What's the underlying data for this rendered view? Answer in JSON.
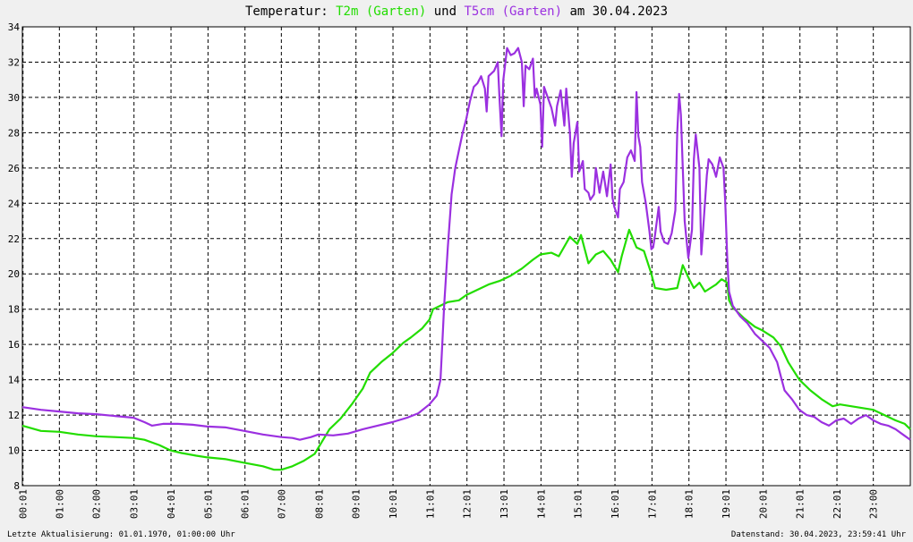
{
  "header": {
    "title_prefix": "Temperatur: ",
    "series1_label": "T2m (Garten)",
    "joiner": " und ",
    "series2_label": "T5cm (Garten)",
    "title_suffix": " am 30.04.2023"
  },
  "footer": {
    "left": "Letzte Aktualisierung: 01.01.1970, 01:00:00 Uhr",
    "right": "Datenstand: 30.04.2023, 23:59:41 Uhr"
  },
  "colors": {
    "t2m": "#22dd00",
    "t5cm": "#9b30e0",
    "background": "#f0f0f0",
    "plot_bg": "#ffffff",
    "grid": "#000000"
  },
  "chart_data": {
    "type": "line",
    "x_unit": "hours",
    "xlim": [
      0,
      24
    ],
    "ylim": [
      8,
      34
    ],
    "grid": true,
    "y_ticks": [
      8,
      10,
      12,
      14,
      16,
      18,
      20,
      22,
      24,
      26,
      28,
      30,
      32,
      34
    ],
    "x_ticks": [
      {
        "x": 0.017,
        "label": "00:01"
      },
      {
        "x": 1,
        "label": "01:00"
      },
      {
        "x": 2,
        "label": "02:00"
      },
      {
        "x": 3.017,
        "label": "03:01"
      },
      {
        "x": 4.017,
        "label": "04:01"
      },
      {
        "x": 5.017,
        "label": "05:01"
      },
      {
        "x": 6.017,
        "label": "06:01"
      },
      {
        "x": 7,
        "label": "07:00"
      },
      {
        "x": 8.017,
        "label": "08:01"
      },
      {
        "x": 9.017,
        "label": "09:01"
      },
      {
        "x": 10.017,
        "label": "10:01"
      },
      {
        "x": 11.017,
        "label": "11:01"
      },
      {
        "x": 12.017,
        "label": "12:01"
      },
      {
        "x": 13.017,
        "label": "13:01"
      },
      {
        "x": 14.017,
        "label": "14:01"
      },
      {
        "x": 15.017,
        "label": "15:01"
      },
      {
        "x": 16.017,
        "label": "16:01"
      },
      {
        "x": 17.017,
        "label": "17:01"
      },
      {
        "x": 18.017,
        "label": "18:01"
      },
      {
        "x": 19.017,
        "label": "19:01"
      },
      {
        "x": 20.017,
        "label": "20:01"
      },
      {
        "x": 21.017,
        "label": "21:01"
      },
      {
        "x": 22.017,
        "label": "22:01"
      },
      {
        "x": 23,
        "label": "23:00"
      }
    ],
    "series": [
      {
        "name": "T2m (Garten)",
        "color": "#22dd00",
        "points": [
          [
            0,
            11.4
          ],
          [
            0.5,
            11.1
          ],
          [
            1,
            11.05
          ],
          [
            1.5,
            10.9
          ],
          [
            2,
            10.8
          ],
          [
            2.5,
            10.75
          ],
          [
            3,
            10.7
          ],
          [
            3.3,
            10.6
          ],
          [
            3.7,
            10.3
          ],
          [
            4,
            10.0
          ],
          [
            4.3,
            9.85
          ],
          [
            4.7,
            9.7
          ],
          [
            5,
            9.6
          ],
          [
            5.5,
            9.5
          ],
          [
            6,
            9.3
          ],
          [
            6.5,
            9.1
          ],
          [
            6.8,
            8.9
          ],
          [
            7,
            8.9
          ],
          [
            7.3,
            9.1
          ],
          [
            7.6,
            9.4
          ],
          [
            7.9,
            9.8
          ],
          [
            8.1,
            10.5
          ],
          [
            8.3,
            11.2
          ],
          [
            8.6,
            11.8
          ],
          [
            8.9,
            12.6
          ],
          [
            9.2,
            13.5
          ],
          [
            9.4,
            14.4
          ],
          [
            9.7,
            15.0
          ],
          [
            10,
            15.5
          ],
          [
            10.3,
            16.1
          ],
          [
            10.5,
            16.4
          ],
          [
            10.8,
            16.9
          ],
          [
            11.0,
            17.4
          ],
          [
            11.1,
            18.0
          ],
          [
            11.5,
            18.4
          ],
          [
            11.8,
            18.5
          ],
          [
            12,
            18.8
          ],
          [
            12.3,
            19.1
          ],
          [
            12.6,
            19.4
          ],
          [
            12.9,
            19.6
          ],
          [
            13.2,
            19.9
          ],
          [
            13.5,
            20.3
          ],
          [
            13.8,
            20.8
          ],
          [
            14,
            21.1
          ],
          [
            14.3,
            21.2
          ],
          [
            14.5,
            21.0
          ],
          [
            14.8,
            22.1
          ],
          [
            15.0,
            21.7
          ],
          [
            15.1,
            22.2
          ],
          [
            15.3,
            20.6
          ],
          [
            15.5,
            21.1
          ],
          [
            15.7,
            21.3
          ],
          [
            15.9,
            20.8
          ],
          [
            16.1,
            20.1
          ],
          [
            16.2,
            21.0
          ],
          [
            16.4,
            22.5
          ],
          [
            16.6,
            21.5
          ],
          [
            16.8,
            21.3
          ],
          [
            17.0,
            20.0
          ],
          [
            17.1,
            19.2
          ],
          [
            17.4,
            19.1
          ],
          [
            17.7,
            19.2
          ],
          [
            17.85,
            20.5
          ],
          [
            18.0,
            19.8
          ],
          [
            18.15,
            19.2
          ],
          [
            18.3,
            19.5
          ],
          [
            18.45,
            19.0
          ],
          [
            18.6,
            19.2
          ],
          [
            18.75,
            19.4
          ],
          [
            18.9,
            19.7
          ],
          [
            19.05,
            19.5
          ],
          [
            19.1,
            18.5
          ],
          [
            19.2,
            18.1
          ],
          [
            19.5,
            17.5
          ],
          [
            19.8,
            17.0
          ],
          [
            20.0,
            16.8
          ],
          [
            20.3,
            16.4
          ],
          [
            20.5,
            15.9
          ],
          [
            20.7,
            15.0
          ],
          [
            21.0,
            14.0
          ],
          [
            21.3,
            13.4
          ],
          [
            21.6,
            12.9
          ],
          [
            21.9,
            12.5
          ],
          [
            22.1,
            12.6
          ],
          [
            22.4,
            12.5
          ],
          [
            22.7,
            12.4
          ],
          [
            23.0,
            12.3
          ],
          [
            23.3,
            12.0
          ],
          [
            23.6,
            11.7
          ],
          [
            23.85,
            11.5
          ],
          [
            24.0,
            11.2
          ]
        ]
      },
      {
        "name": "T5cm (Garten)",
        "color": "#9b30e0",
        "points": [
          [
            0,
            12.45
          ],
          [
            0.5,
            12.3
          ],
          [
            1,
            12.2
          ],
          [
            1.5,
            12.1
          ],
          [
            2,
            12.05
          ],
          [
            2.5,
            11.95
          ],
          [
            3,
            11.85
          ],
          [
            3.3,
            11.6
          ],
          [
            3.5,
            11.4
          ],
          [
            3.8,
            11.5
          ],
          [
            4.2,
            11.5
          ],
          [
            4.6,
            11.45
          ],
          [
            5,
            11.35
          ],
          [
            5.5,
            11.3
          ],
          [
            6,
            11.1
          ],
          [
            6.5,
            10.9
          ],
          [
            7,
            10.75
          ],
          [
            7.3,
            10.7
          ],
          [
            7.5,
            10.6
          ],
          [
            7.8,
            10.75
          ],
          [
            8,
            10.9
          ],
          [
            8.4,
            10.85
          ],
          [
            8.8,
            10.95
          ],
          [
            9.2,
            11.2
          ],
          [
            9.6,
            11.4
          ],
          [
            10.0,
            11.6
          ],
          [
            10.4,
            11.85
          ],
          [
            10.7,
            12.1
          ],
          [
            11.0,
            12.6
          ],
          [
            11.2,
            13.1
          ],
          [
            11.3,
            14.0
          ],
          [
            11.35,
            16.0
          ],
          [
            11.4,
            18.2
          ],
          [
            11.5,
            21.5
          ],
          [
            11.6,
            24.5
          ],
          [
            11.7,
            26.0
          ],
          [
            11.8,
            27.0
          ],
          [
            11.9,
            28.0
          ],
          [
            12.0,
            28.8
          ],
          [
            12.1,
            29.8
          ],
          [
            12.2,
            30.6
          ],
          [
            12.3,
            30.8
          ],
          [
            12.4,
            31.2
          ],
          [
            12.5,
            30.5
          ],
          [
            12.55,
            29.2
          ],
          [
            12.6,
            31.2
          ],
          [
            12.75,
            31.5
          ],
          [
            12.85,
            32.0
          ],
          [
            12.9,
            29.8
          ],
          [
            12.95,
            27.8
          ],
          [
            13.0,
            31.0
          ],
          [
            13.1,
            32.8
          ],
          [
            13.2,
            32.4
          ],
          [
            13.3,
            32.5
          ],
          [
            13.4,
            32.8
          ],
          [
            13.5,
            32.0
          ],
          [
            13.55,
            29.5
          ],
          [
            13.6,
            31.8
          ],
          [
            13.7,
            31.6
          ],
          [
            13.8,
            32.2
          ],
          [
            13.85,
            30.0
          ],
          [
            13.9,
            30.5
          ],
          [
            14.0,
            29.6
          ],
          [
            14.05,
            27.2
          ],
          [
            14.1,
            30.6
          ],
          [
            14.2,
            30.0
          ],
          [
            14.3,
            29.4
          ],
          [
            14.4,
            28.4
          ],
          [
            14.45,
            29.5
          ],
          [
            14.55,
            30.4
          ],
          [
            14.65,
            28.4
          ],
          [
            14.7,
            30.5
          ],
          [
            14.8,
            28.0
          ],
          [
            14.85,
            25.5
          ],
          [
            14.9,
            27.4
          ],
          [
            15.0,
            28.6
          ],
          [
            15.05,
            25.8
          ],
          [
            15.15,
            26.4
          ],
          [
            15.2,
            24.8
          ],
          [
            15.3,
            24.6
          ],
          [
            15.35,
            24.2
          ],
          [
            15.45,
            24.5
          ],
          [
            15.5,
            26.0
          ],
          [
            15.6,
            24.6
          ],
          [
            15.7,
            25.8
          ],
          [
            15.8,
            24.4
          ],
          [
            15.9,
            26.2
          ],
          [
            15.95,
            24.3
          ],
          [
            16.0,
            23.8
          ],
          [
            16.1,
            23.2
          ],
          [
            16.15,
            24.8
          ],
          [
            16.25,
            25.2
          ],
          [
            16.35,
            26.6
          ],
          [
            16.45,
            27.0
          ],
          [
            16.55,
            26.4
          ],
          [
            16.6,
            30.3
          ],
          [
            16.65,
            27.8
          ],
          [
            16.7,
            27.2
          ],
          [
            16.75,
            25.2
          ],
          [
            16.85,
            24.0
          ],
          [
            16.95,
            22.4
          ],
          [
            17.0,
            21.4
          ],
          [
            17.05,
            21.5
          ],
          [
            17.1,
            22.2
          ],
          [
            17.2,
            23.8
          ],
          [
            17.25,
            22.4
          ],
          [
            17.35,
            21.8
          ],
          [
            17.45,
            21.7
          ],
          [
            17.55,
            22.3
          ],
          [
            17.65,
            23.6
          ],
          [
            17.7,
            28.0
          ],
          [
            17.75,
            30.2
          ],
          [
            17.8,
            29.0
          ],
          [
            17.85,
            26.0
          ],
          [
            17.9,
            23.0
          ],
          [
            18.0,
            20.9
          ],
          [
            18.1,
            22.5
          ],
          [
            18.15,
            26.5
          ],
          [
            18.2,
            27.9
          ],
          [
            18.3,
            26.0
          ],
          [
            18.35,
            21.1
          ],
          [
            18.4,
            22.5
          ],
          [
            18.5,
            25.6
          ],
          [
            18.55,
            26.5
          ],
          [
            18.65,
            26.2
          ],
          [
            18.75,
            25.5
          ],
          [
            18.85,
            26.6
          ],
          [
            18.95,
            26.0
          ],
          [
            19.0,
            24.0
          ],
          [
            19.05,
            21.0
          ],
          [
            19.1,
            19.0
          ],
          [
            19.2,
            18.2
          ],
          [
            19.4,
            17.6
          ],
          [
            19.6,
            17.2
          ],
          [
            19.8,
            16.6
          ],
          [
            20.0,
            16.2
          ],
          [
            20.2,
            15.8
          ],
          [
            20.4,
            15.0
          ],
          [
            20.5,
            14.2
          ],
          [
            20.6,
            13.4
          ],
          [
            20.8,
            12.9
          ],
          [
            21.0,
            12.3
          ],
          [
            21.2,
            12.0
          ],
          [
            21.4,
            11.9
          ],
          [
            21.6,
            11.6
          ],
          [
            21.8,
            11.4
          ],
          [
            22.0,
            11.7
          ],
          [
            22.2,
            11.8
          ],
          [
            22.4,
            11.5
          ],
          [
            22.6,
            11.8
          ],
          [
            22.8,
            12.0
          ],
          [
            23.0,
            11.7
          ],
          [
            23.2,
            11.5
          ],
          [
            23.4,
            11.4
          ],
          [
            23.6,
            11.2
          ],
          [
            23.8,
            10.9
          ],
          [
            24.0,
            10.6
          ]
        ]
      }
    ]
  }
}
